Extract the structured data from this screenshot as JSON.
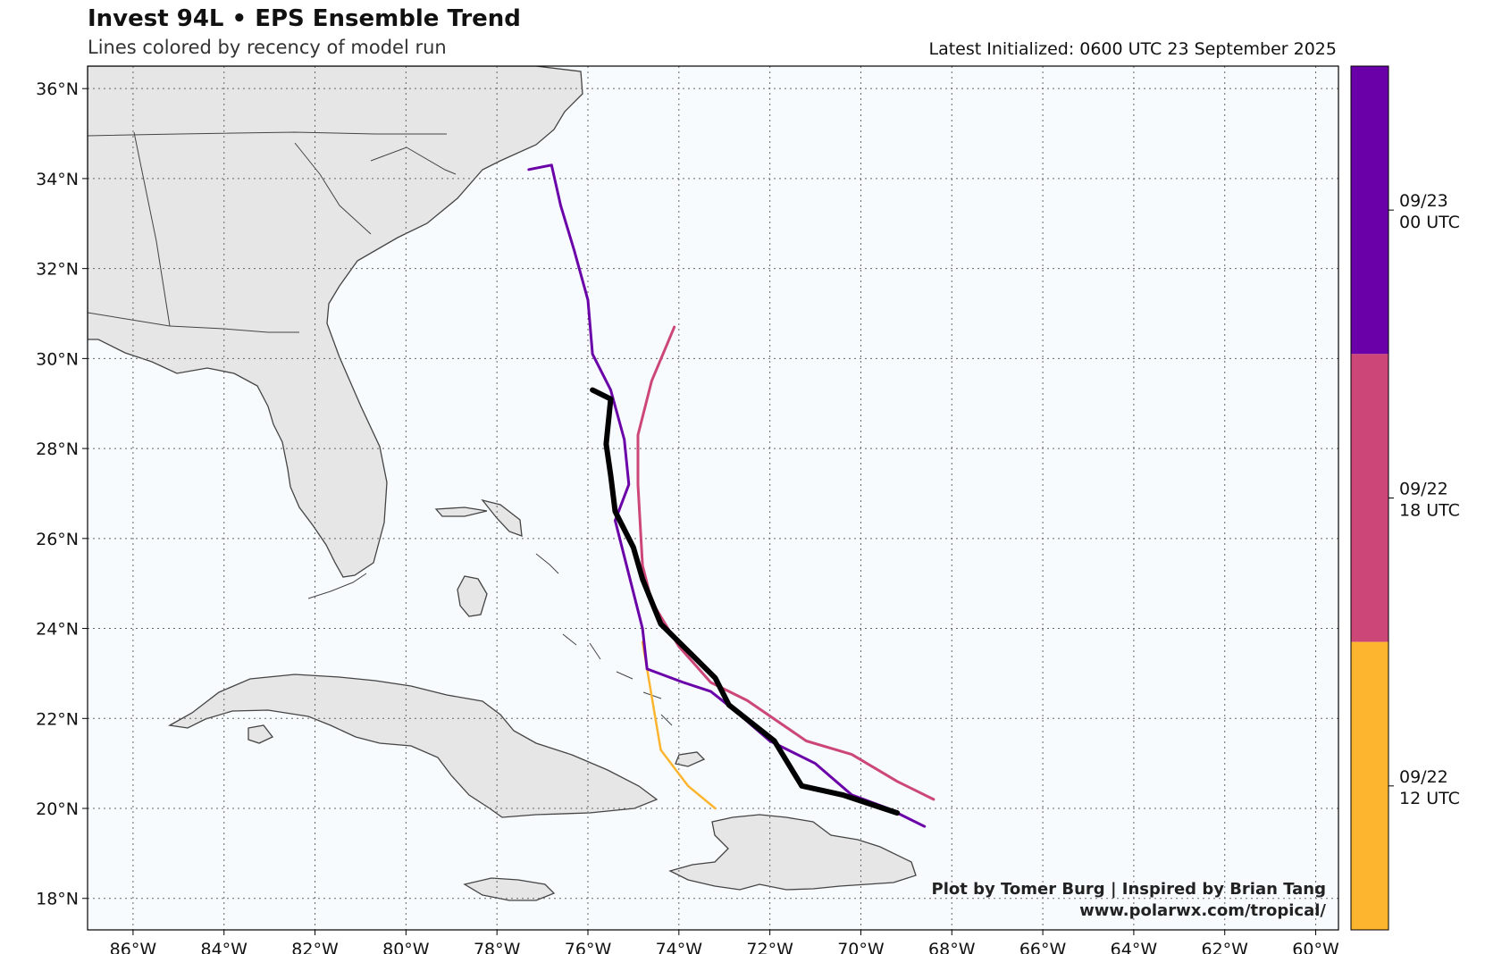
{
  "header": {
    "title": "Invest 94L • EPS Ensemble Trend",
    "subtitle": "Lines colored by recency of model run",
    "latest": "Latest Initialized: 0600 UTC 23 September 2025"
  },
  "credits": {
    "line1": "Plot by Tomer Burg | Inspired by Brian Tang",
    "line2": "www.polarwx.com/tropical/"
  },
  "map": {
    "lon_range": [
      -87.0,
      -59.5
    ],
    "lat_range": [
      17.3,
      36.5
    ],
    "lon_ticks": [
      {
        "v": -86,
        "label": "86°W"
      },
      {
        "v": -84,
        "label": "84°W"
      },
      {
        "v": -82,
        "label": "82°W"
      },
      {
        "v": -80,
        "label": "80°W"
      },
      {
        "v": -78,
        "label": "78°W"
      },
      {
        "v": -76,
        "label": "76°W"
      },
      {
        "v": -74,
        "label": "74°W"
      },
      {
        "v": -72,
        "label": "72°W"
      },
      {
        "v": -70,
        "label": "70°W"
      },
      {
        "v": -68,
        "label": "68°W"
      },
      {
        "v": -66,
        "label": "66°W"
      },
      {
        "v": -64,
        "label": "64°W"
      },
      {
        "v": -62,
        "label": "62°W"
      },
      {
        "v": -60,
        "label": "60°W"
      }
    ],
    "lat_ticks": [
      {
        "v": 36,
        "label": "36°N"
      },
      {
        "v": 34,
        "label": "34°N"
      },
      {
        "v": 32,
        "label": "32°N"
      },
      {
        "v": 30,
        "label": "30°N"
      },
      {
        "v": 28,
        "label": "28°N"
      },
      {
        "v": 26,
        "label": "26°N"
      },
      {
        "v": 24,
        "label": "24°N"
      },
      {
        "v": 22,
        "label": "22°N"
      },
      {
        "v": 20,
        "label": "20°N"
      },
      {
        "v": 18,
        "label": "18°N"
      }
    ],
    "colors": {
      "ocean": "#f7fbfd",
      "land": "#e6e6e6",
      "coast": "#444444",
      "grid": "#666666"
    }
  },
  "colorbar": {
    "segments": [
      {
        "label": [
          "09/23",
          "00 UTC"
        ],
        "color": "#6a00a8"
      },
      {
        "label": [
          "09/22",
          "18 UTC"
        ],
        "color": "#cc4778"
      },
      {
        "label": [
          "09/22",
          "12 UTC"
        ],
        "color": "#fdb42f"
      }
    ]
  },
  "chart_data": {
    "type": "line",
    "xlabel": "",
    "ylabel": "",
    "series": [
      {
        "name": "09/22 12 UTC",
        "color": "#fdb42f",
        "width": 2.5,
        "points": [
          [
            -74.8,
            23.7
          ],
          [
            -74.6,
            22.5
          ],
          [
            -74.4,
            21.3
          ],
          [
            -73.8,
            20.5
          ],
          [
            -73.2,
            20.0
          ]
        ]
      },
      {
        "name": "09/22 18 UTC",
        "color": "#cc4778",
        "width": 3,
        "points": [
          [
            -74.1,
            30.7
          ],
          [
            -74.6,
            29.5
          ],
          [
            -74.9,
            28.3
          ],
          [
            -74.9,
            27.2
          ],
          [
            -74.8,
            25.4
          ],
          [
            -74.6,
            24.6
          ],
          [
            -74.0,
            23.6
          ],
          [
            -73.3,
            22.8
          ],
          [
            -72.5,
            22.4
          ],
          [
            -71.2,
            21.5
          ],
          [
            -70.2,
            21.2
          ],
          [
            -69.2,
            20.6
          ],
          [
            -68.4,
            20.2
          ]
        ]
      },
      {
        "name": "09/23 00 UTC",
        "color": "#6a00a8",
        "width": 3,
        "points": [
          [
            -77.3,
            34.2
          ],
          [
            -76.8,
            34.3
          ],
          [
            -76.6,
            33.4
          ],
          [
            -76.3,
            32.4
          ],
          [
            -76.0,
            31.3
          ],
          [
            -75.9,
            30.1
          ],
          [
            -75.5,
            29.3
          ],
          [
            -75.2,
            28.2
          ],
          [
            -75.1,
            27.2
          ],
          [
            -75.4,
            26.4
          ],
          [
            -75.1,
            25.2
          ],
          [
            -74.8,
            24.0
          ],
          [
            -74.7,
            23.1
          ],
          [
            -73.9,
            22.8
          ],
          [
            -73.3,
            22.6
          ],
          [
            -72.8,
            22.2
          ],
          [
            -72.0,
            21.5
          ],
          [
            -71.0,
            21.0
          ],
          [
            -70.2,
            20.3
          ],
          [
            -69.4,
            20.0
          ],
          [
            -68.6,
            19.6
          ]
        ]
      },
      {
        "name": "EPS 0600 UTC 23 September 2025",
        "color": "#000000",
        "width": 6,
        "points": [
          [
            -75.9,
            29.3
          ],
          [
            -75.5,
            29.1
          ],
          [
            -75.6,
            28.1
          ],
          [
            -75.5,
            27.4
          ],
          [
            -75.4,
            26.6
          ],
          [
            -75.0,
            25.8
          ],
          [
            -74.8,
            25.1
          ],
          [
            -74.4,
            24.1
          ],
          [
            -73.7,
            23.4
          ],
          [
            -73.2,
            22.9
          ],
          [
            -72.9,
            22.3
          ],
          [
            -71.9,
            21.5
          ],
          [
            -71.3,
            20.5
          ],
          [
            -70.4,
            20.3
          ],
          [
            -69.8,
            20.1
          ],
          [
            -69.2,
            19.9
          ]
        ]
      }
    ]
  }
}
